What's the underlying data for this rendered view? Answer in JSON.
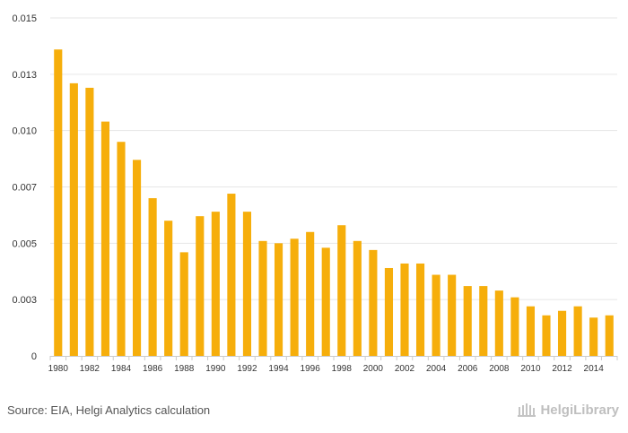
{
  "chart_data": {
    "type": "bar",
    "title": "",
    "xlabel": "",
    "ylabel": "",
    "ylim": [
      0,
      0.015
    ],
    "y_ticks": [
      "0",
      "0.003",
      "0.005",
      "0.007",
      "0.010",
      "0.013",
      "0.015"
    ],
    "y_tick_values": [
      0,
      0.0025,
      0.005,
      0.0075,
      0.01,
      0.0125,
      0.015
    ],
    "x_tick_labels": [
      "1980",
      "1982",
      "1984",
      "1986",
      "1988",
      "1990",
      "1992",
      "1994",
      "1996",
      "1998",
      "2000",
      "2002",
      "2004",
      "2006",
      "2008",
      "2010",
      "2012",
      "2014"
    ],
    "categories": [
      "1980",
      "1981",
      "1982",
      "1983",
      "1984",
      "1985",
      "1986",
      "1987",
      "1988",
      "1989",
      "1990",
      "1991",
      "1992",
      "1993",
      "1994",
      "1995",
      "1996",
      "1997",
      "1998",
      "1999",
      "2000",
      "2001",
      "2002",
      "2003",
      "2004",
      "2005",
      "2006",
      "2007",
      "2008",
      "2009",
      "2010",
      "2011",
      "2012",
      "2013",
      "2014",
      "2015"
    ],
    "values": [
      0.0136,
      0.0121,
      0.0119,
      0.0104,
      0.0095,
      0.0087,
      0.007,
      0.006,
      0.0046,
      0.0062,
      0.0064,
      0.0072,
      0.0064,
      0.0051,
      0.005,
      0.0052,
      0.0055,
      0.0048,
      0.0058,
      0.0051,
      0.0047,
      0.0039,
      0.0041,
      0.0041,
      0.0036,
      0.0036,
      0.0031,
      0.0031,
      0.0029,
      0.0026,
      0.0022,
      0.0018,
      0.002,
      0.0022,
      0.0017,
      0.0018
    ],
    "colors": {
      "bar": "#f6ae0b",
      "grid": "#e6e6e6",
      "axis": "#cccccc"
    }
  },
  "footer": {
    "source": "Source: EIA, Helgi Analytics calculation",
    "logo_text": "HelgiLibrary"
  }
}
